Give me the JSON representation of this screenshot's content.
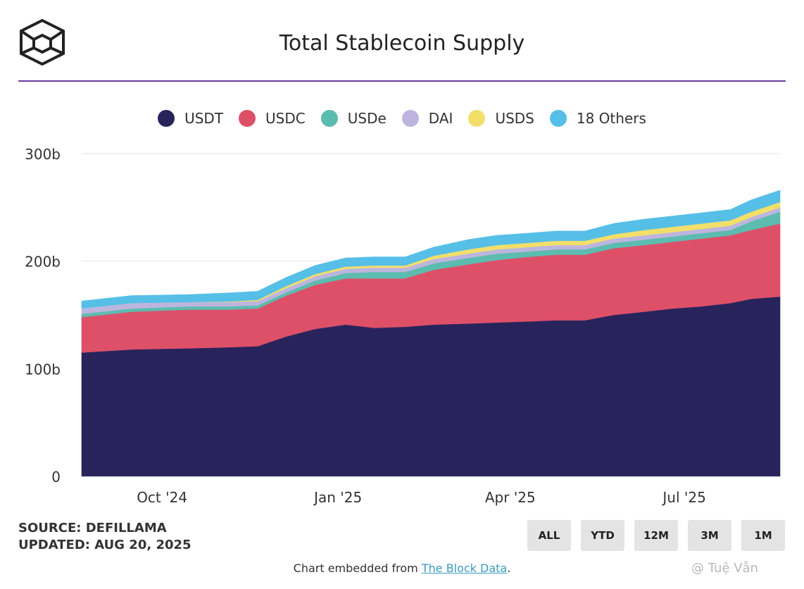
{
  "header": {
    "title": "Total Stablecoin Supply",
    "logo_icon": "the-block-cube-logo"
  },
  "source": {
    "line1": "SOURCE: DEFILLAMA",
    "line2": "UPDATED: AUG 20, 2025"
  },
  "range_buttons": [
    "ALL",
    "YTD",
    "12M",
    "3M",
    "1M"
  ],
  "footer": {
    "prefix": "Chart embedded from ",
    "link": "The Block Data",
    "suffix": "."
  },
  "watermark": "@ Tuệ Vẫn",
  "chart_data": {
    "type": "area",
    "stacked": true,
    "title": "Total Stablecoin Supply",
    "ylim": [
      0,
      300
    ],
    "y_ticks": [
      "0",
      "100b",
      "200b",
      "300b"
    ],
    "y_tick_values": [
      0,
      100,
      200,
      300
    ],
    "x_ticks": [
      "Oct '24",
      "Jan '25",
      "Apr '25",
      "Jul '25"
    ],
    "x_tick_dates": [
      "2024-10-01",
      "2025-01-01",
      "2025-04-01",
      "2025-07-01"
    ],
    "x_range": [
      "2024-08-20",
      "2025-08-20"
    ],
    "grid": true,
    "legend_position": "top-center",
    "x": [
      "2024-08-20",
      "2024-09-15",
      "2024-10-15",
      "2024-11-05",
      "2024-11-20",
      "2024-12-05",
      "2024-12-20",
      "2025-01-05",
      "2025-01-20",
      "2025-02-05",
      "2025-02-20",
      "2025-03-10",
      "2025-03-25",
      "2025-04-10",
      "2025-04-25",
      "2025-05-10",
      "2025-05-25",
      "2025-06-10",
      "2025-06-25",
      "2025-07-10",
      "2025-07-25",
      "2025-08-05",
      "2025-08-20"
    ],
    "series": [
      {
        "name": "USDT",
        "color": "#29235c",
        "values": [
          115,
          118,
          119,
          120,
          121,
          130,
          137,
          141,
          138,
          139,
          141,
          142,
          143,
          144,
          145,
          145,
          150,
          153,
          156,
          158,
          161,
          165,
          167
        ]
      },
      {
        "name": "USDC",
        "color": "#dd5068",
        "values": [
          33,
          35,
          36,
          35,
          35,
          38,
          41,
          43,
          46,
          45,
          51,
          55,
          58,
          60,
          61,
          61,
          62,
          62,
          62,
          63,
          63,
          64,
          68
        ]
      },
      {
        "name": "USDe",
        "color": "#5cbcb0",
        "values": [
          3,
          3,
          3,
          3,
          3,
          3,
          4,
          5,
          6,
          6,
          6,
          6,
          6,
          5,
          5,
          5,
          5,
          5,
          5,
          5,
          5,
          8,
          11
        ]
      },
      {
        "name": "DAI",
        "color": "#bdb5de",
        "values": [
          5,
          5,
          4,
          4,
          4,
          4,
          4,
          4,
          4,
          4,
          4,
          4,
          4,
          4,
          4,
          4,
          4,
          4,
          4,
          4,
          4,
          4,
          4
        ]
      },
      {
        "name": "USDS",
        "color": "#f2df6a",
        "values": [
          0,
          0,
          0,
          0.5,
          1,
          2,
          2,
          2,
          2,
          2,
          3,
          4,
          4,
          4,
          4,
          4,
          4,
          5,
          5,
          5,
          5,
          5,
          5
        ]
      },
      {
        "name": "18 Others",
        "color": "#56bfe8",
        "values": [
          7,
          7,
          7,
          8,
          8,
          8,
          8,
          8,
          8,
          8,
          8,
          9,
          9,
          9,
          9,
          9,
          10,
          10,
          10,
          10,
          10,
          11,
          11
        ]
      }
    ]
  }
}
